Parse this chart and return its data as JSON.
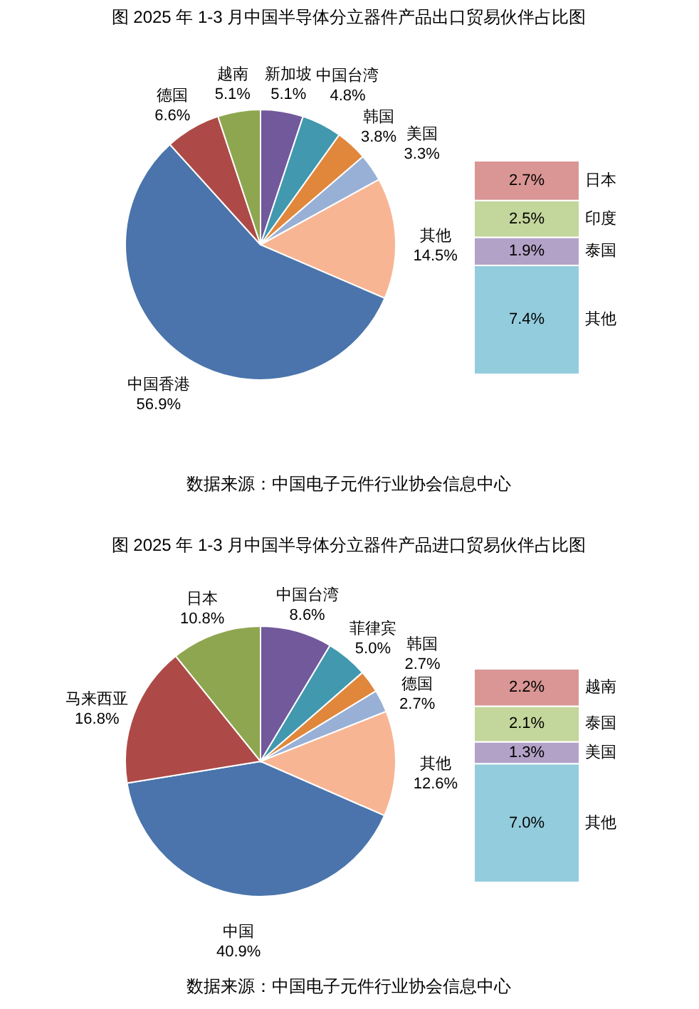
{
  "chart_data": [
    {
      "type": "pie",
      "title": "图    2025 年 1-3 月中国半导体分立器件产品出口贸易伙伴占比图",
      "categories": [
        "新加坡",
        "中国台湾",
        "韩国",
        "美国",
        "其他",
        "中国香港",
        "德国",
        "越南"
      ],
      "values": [
        5.1,
        4.8,
        3.8,
        3.3,
        14.5,
        56.9,
        6.6,
        5.1
      ],
      "value_labels": [
        "5.1%",
        "4.8%",
        "3.8%",
        "3.3%",
        "14.5%",
        "56.9%",
        "6.6%",
        "5.1%"
      ],
      "colors": [
        "#71599b",
        "#4198af",
        "#e0873c",
        "#98b0d6",
        "#f8b593",
        "#4a74ab",
        "#ad4a47",
        "#8ea64f"
      ],
      "annotations": [
        "数据来源：中国电子元件行业协会信息中心"
      ]
    },
    {
      "type": "bar",
      "stacked": true,
      "categories": [
        null
      ],
      "series": [
        {
          "name": "其他",
          "color": "#93cddd",
          "values": [
            7.4
          ],
          "value_labels": [
            "7.4%"
          ]
        },
        {
          "name": "泰国",
          "color": "#b3a2c7",
          "values": [
            1.9
          ],
          "value_labels": [
            "1.9%"
          ]
        },
        {
          "name": "印度",
          "color": "#c3d69b",
          "values": [
            2.5
          ],
          "value_labels": [
            "2.5%"
          ]
        },
        {
          "name": "日本",
          "color": "#d99694",
          "values": [
            2.7
          ],
          "value_labels": [
            "2.7%"
          ]
        }
      ]
    },
    {
      "type": "pie",
      "title": "图    2025 年 1-3 月中国半导体分立器件产品进口贸易伙伴占比图",
      "categories": [
        "中国台湾",
        "菲律宾",
        "韩国",
        "德国",
        "其他",
        "中国",
        "马来西亚",
        "日本"
      ],
      "values": [
        8.6,
        5.0,
        2.7,
        2.7,
        12.6,
        40.9,
        16.8,
        10.8
      ],
      "value_labels": [
        "8.6%",
        "5.0%",
        "2.7%",
        "2.7%",
        "12.6%",
        "40.9%",
        "16.8%",
        "10.8%"
      ],
      "colors": [
        "#71599b",
        "#4198af",
        "#e0873c",
        "#98b0d6",
        "#f8b593",
        "#4a74ab",
        "#ad4a47",
        "#8ea64f"
      ],
      "annotations": [
        "数据来源：中国电子元件行业协会信息中心"
      ]
    },
    {
      "type": "bar",
      "stacked": true,
      "categories": [
        null
      ],
      "series": [
        {
          "name": "其他",
          "color": "#93cddd",
          "values": [
            7.0
          ],
          "value_labels": [
            "7.0%"
          ]
        },
        {
          "name": "美国",
          "color": "#b3a2c7",
          "values": [
            1.3
          ],
          "value_labels": [
            "1.3%"
          ]
        },
        {
          "name": "泰国",
          "color": "#c3d69b",
          "values": [
            2.1
          ],
          "value_labels": [
            "2.1%"
          ]
        },
        {
          "name": "越南",
          "color": "#d99694",
          "values": [
            2.2
          ],
          "value_labels": [
            "2.2%"
          ]
        }
      ]
    }
  ]
}
